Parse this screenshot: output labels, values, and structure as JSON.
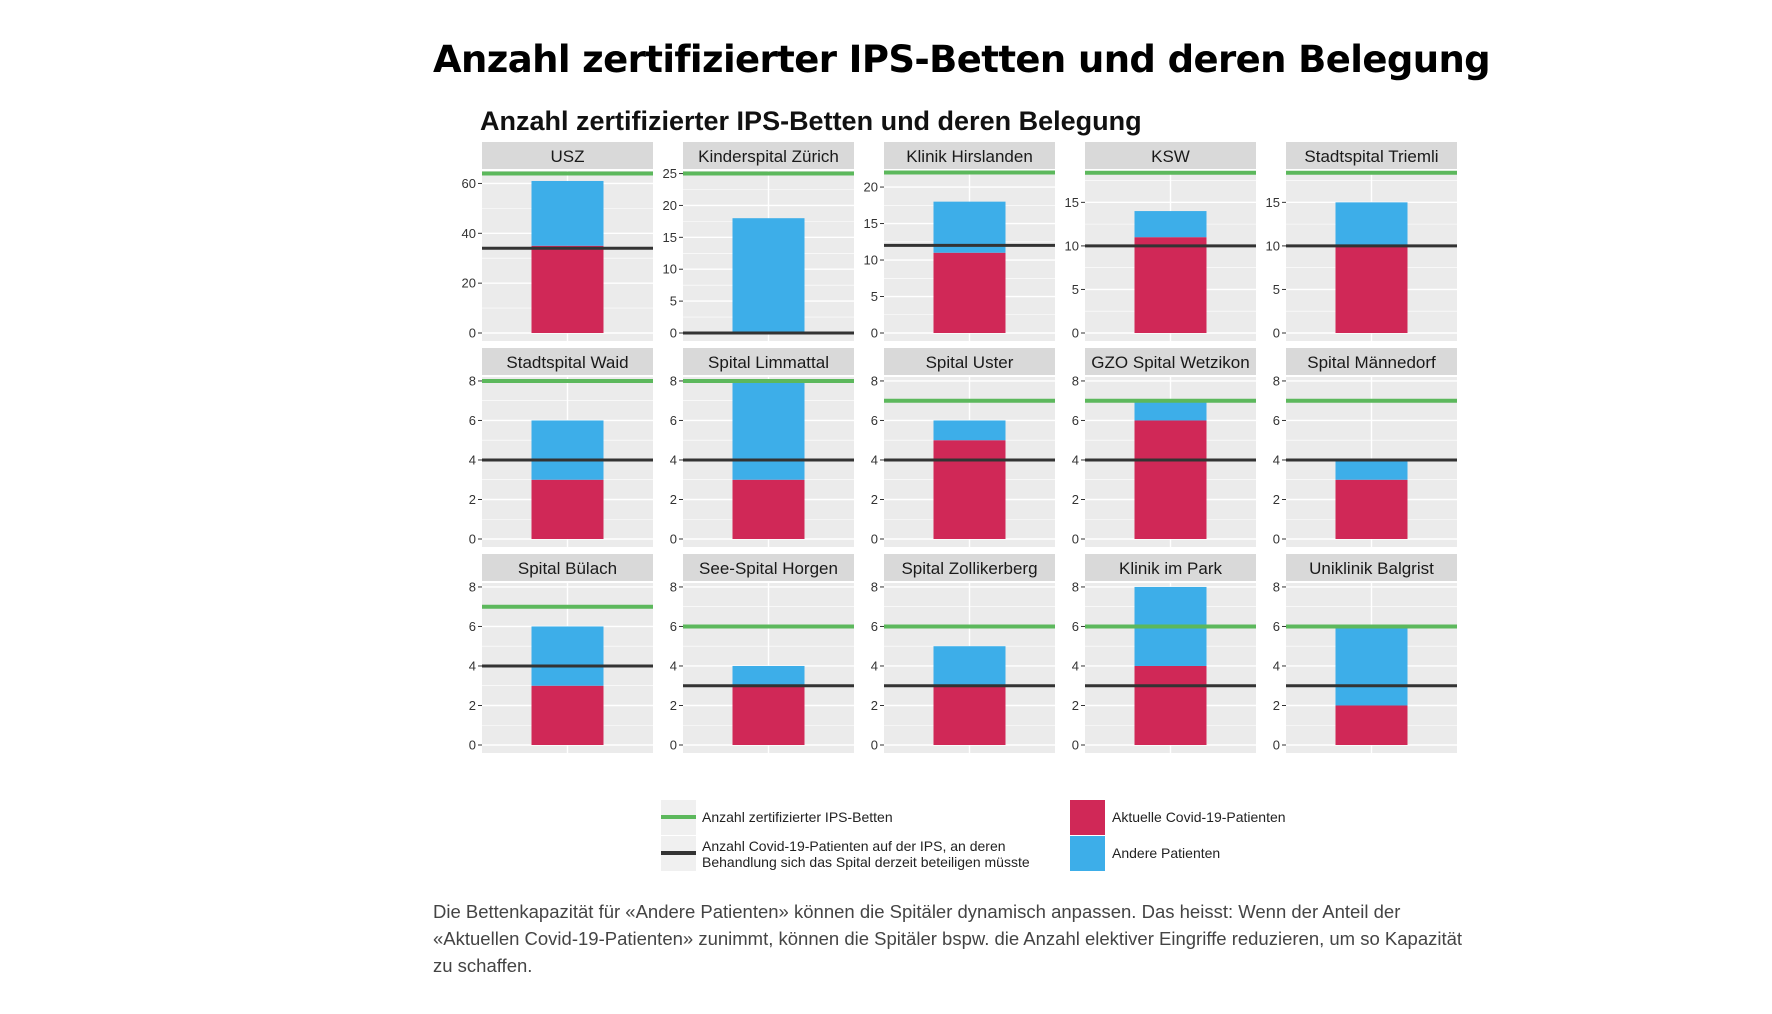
{
  "page": {
    "title": "Anzahl zertifizierter IPS-Betten und deren Belegung",
    "caption": "Die Bettenkapazität für «Andere Patienten» können die Spitäler dynamisch anpassen. Das heisst: Wenn der Anteil der «Aktuellen Covid-19-Patienten» zunimmt, können die Spitäler bspw. die Anzahl elektiver Eingriffe reduzieren, um so Kapazität zu schaffen."
  },
  "colors": {
    "covid": "#d02857",
    "other": "#3daee9",
    "certified_line": "#5cb85c",
    "threshold_line": "#333333",
    "panel_bg": "#ebebeb",
    "strip_bg": "#d9d9d9",
    "grid": "#ffffff"
  },
  "chart_data": {
    "type": "bar",
    "subtype": "stacked-bar-facets",
    "title": "Anzahl zertifizierter IPS-Betten und deren Belegung",
    "facet_layout": {
      "rows": 3,
      "cols": 5
    },
    "legend": {
      "placement": "bottom",
      "items": [
        {
          "key": "certified_line",
          "kind": "line",
          "label_lines": [
            "Anzahl zertifizierter IPS-Betten"
          ]
        },
        {
          "key": "threshold_line",
          "kind": "line",
          "label_lines": [
            "Anzahl Covid-19-Patienten auf der IPS, an deren",
            "Behandlung sich das Spital derzeit beteiligen müsste"
          ]
        },
        {
          "key": "covid",
          "kind": "box",
          "label_lines": [
            "Aktuelle Covid-19-Patienten"
          ]
        },
        {
          "key": "other",
          "kind": "box",
          "label_lines": [
            "Andere Patienten"
          ]
        }
      ]
    },
    "facets": [
      {
        "name": "USZ",
        "covid": 35,
        "other": 26,
        "certified": 64,
        "threshold": 34,
        "ylim": [
          0,
          65
        ],
        "yticks": [
          0,
          20,
          40,
          60
        ]
      },
      {
        "name": "Kinderspital Zürich",
        "covid": 0,
        "other": 18,
        "certified": 25,
        "threshold": 0,
        "ylim": [
          0,
          25.4
        ],
        "yticks": [
          0,
          5,
          10,
          15,
          20,
          25
        ]
      },
      {
        "name": "Klinik Hirslanden",
        "covid": 11,
        "other": 7,
        "certified": 22,
        "threshold": 12,
        "ylim": [
          0,
          22.2
        ],
        "yticks": [
          0,
          5,
          10,
          15,
          20
        ]
      },
      {
        "name": "KSW",
        "covid": 11,
        "other": 3,
        "certified": 18.4,
        "threshold": 10,
        "ylim": [
          0,
          18.6
        ],
        "yticks": [
          0,
          5,
          10,
          15
        ]
      },
      {
        "name": "Stadtspital Triemli",
        "covid": 10,
        "other": 5,
        "certified": 18.4,
        "threshold": 10,
        "ylim": [
          0,
          18.6
        ],
        "yticks": [
          0,
          5,
          10,
          15
        ]
      },
      {
        "name": "Stadtspital Waid",
        "covid": 3,
        "other": 3,
        "certified": 8,
        "threshold": 4,
        "ylim": [
          0,
          8.2
        ],
        "yticks": [
          0,
          2,
          4,
          6,
          8
        ]
      },
      {
        "name": "Spital Limmattal",
        "covid": 3,
        "other": 5,
        "certified": 8,
        "threshold": 4,
        "ylim": [
          0,
          8.2
        ],
        "yticks": [
          0,
          2,
          4,
          6,
          8
        ]
      },
      {
        "name": "Spital Uster",
        "covid": 5,
        "other": 1,
        "certified": 7,
        "threshold": 4,
        "ylim": [
          0,
          8.2
        ],
        "yticks": [
          0,
          2,
          4,
          6,
          8
        ]
      },
      {
        "name": "GZO Spital Wetzikon",
        "covid": 6,
        "other": 1,
        "certified": 7,
        "threshold": 4,
        "ylim": [
          0,
          8.2
        ],
        "yticks": [
          0,
          2,
          4,
          6,
          8
        ]
      },
      {
        "name": "Spital Männedorf",
        "covid": 3,
        "other": 1,
        "certified": 7,
        "threshold": 4,
        "ylim": [
          0,
          8.2
        ],
        "yticks": [
          0,
          2,
          4,
          6,
          8
        ]
      },
      {
        "name": "Spital Bülach",
        "covid": 3,
        "other": 3,
        "certified": 7,
        "threshold": 4,
        "ylim": [
          0,
          8.2
        ],
        "yticks": [
          0,
          2,
          4,
          6,
          8
        ]
      },
      {
        "name": "See-Spital Horgen",
        "covid": 3,
        "other": 1,
        "certified": 6,
        "threshold": 3,
        "ylim": [
          0,
          8.2
        ],
        "yticks": [
          0,
          2,
          4,
          6,
          8
        ]
      },
      {
        "name": "Spital Zollikerberg",
        "covid": 3,
        "other": 2,
        "certified": 6,
        "threshold": 3,
        "ylim": [
          0,
          8.2
        ],
        "yticks": [
          0,
          2,
          4,
          6,
          8
        ]
      },
      {
        "name": "Klinik im Park",
        "covid": 4,
        "other": 4,
        "certified": 6,
        "threshold": 3,
        "ylim": [
          0,
          8.2
        ],
        "yticks": [
          0,
          2,
          4,
          6,
          8
        ]
      },
      {
        "name": "Uniklinik Balgrist",
        "covid": 2,
        "other": 4,
        "certified": 6,
        "threshold": 3,
        "ylim": [
          0,
          8.2
        ],
        "yticks": [
          0,
          2,
          4,
          6,
          8
        ]
      }
    ]
  }
}
